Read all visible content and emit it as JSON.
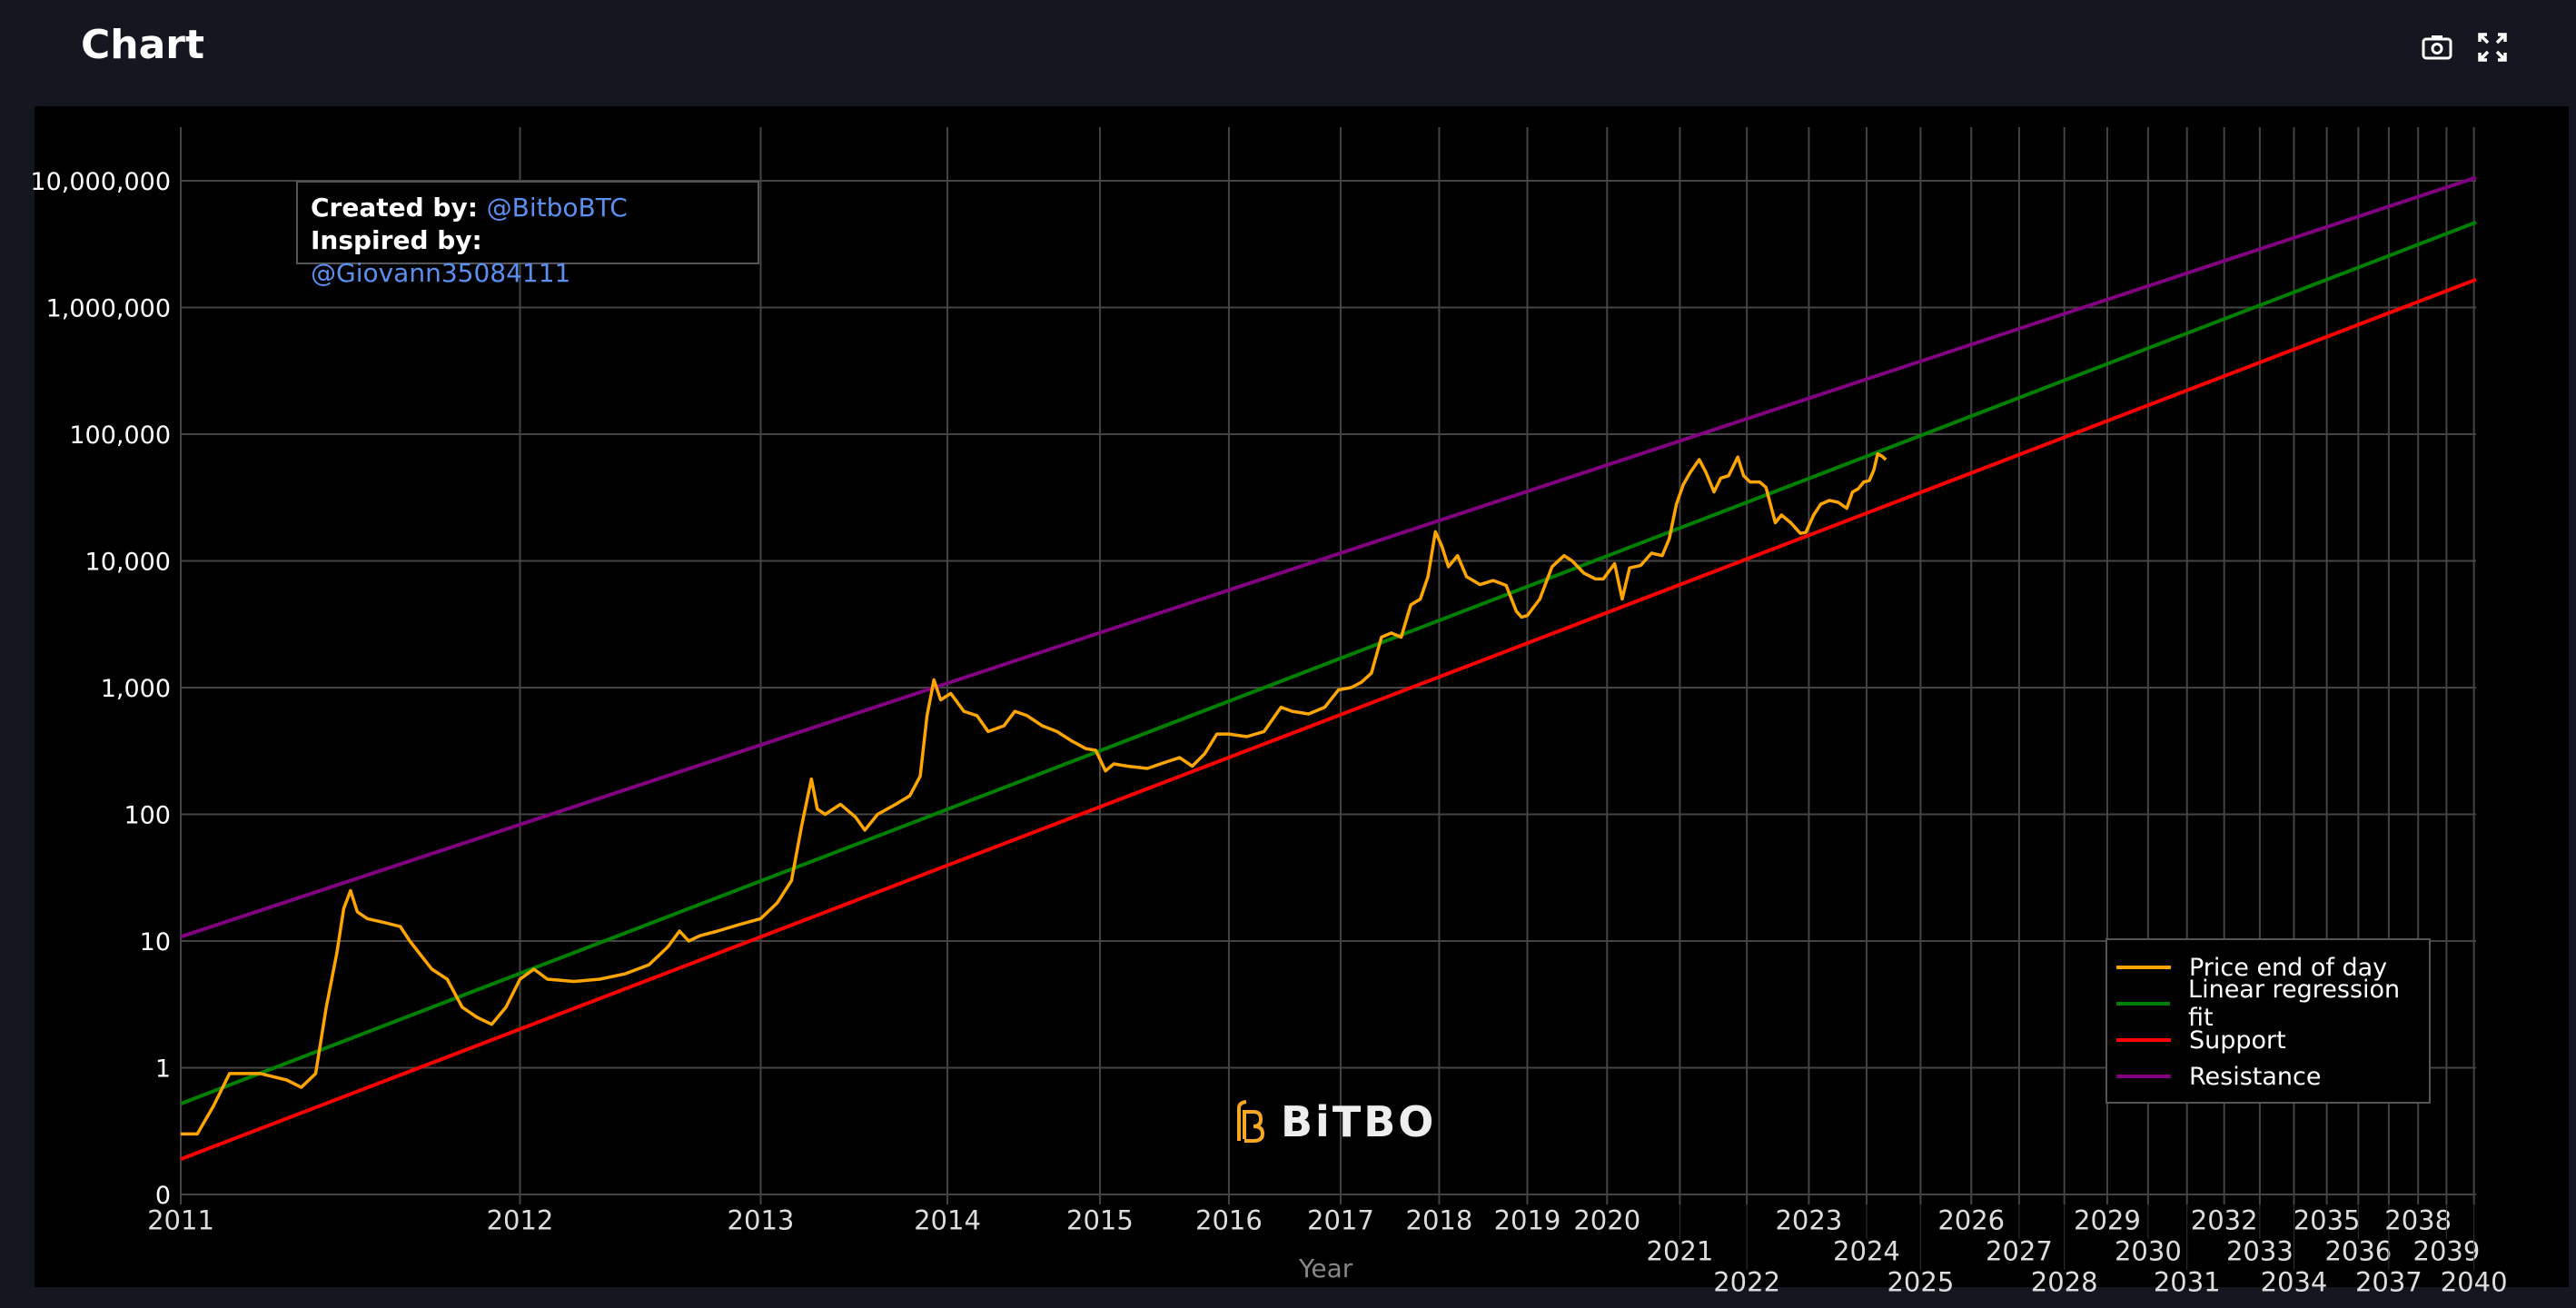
{
  "header": {
    "title": "Chart",
    "icons": [
      "camera-icon",
      "expand-icon"
    ]
  },
  "annotation": {
    "created_label": "Created by:",
    "created_value": "@BitboBTC",
    "inspired_label": "Inspired by:",
    "inspired_value": "@Giovann35084111"
  },
  "logo": {
    "text": "BiTBO"
  },
  "colors": {
    "price": "#FFA500",
    "regression": "#008000",
    "support": "#FF0000",
    "resistance": "#800080",
    "grid": "#444444",
    "link": "#5b8ff0"
  },
  "chart_data": {
    "type": "line",
    "title": "Chart",
    "xlabel": "Year",
    "ylabel": "",
    "x_scale": "log (years since 2009)",
    "y_scale": "log",
    "xlim": [
      2011,
      2040.08
    ],
    "ylim": [
      0.1,
      10000000
    ],
    "grid": true,
    "legend_position": "bottom-right",
    "x_ticks": [
      "2011",
      "2012",
      "2013",
      "2014",
      "2015",
      "2016",
      "2017",
      "2018",
      "2019",
      "2020",
      "2021",
      "2022",
      "2023",
      "2024",
      "2025",
      "2026",
      "2027",
      "2028",
      "2029",
      "2030",
      "2031",
      "2032",
      "2033",
      "2034",
      "2035",
      "2036",
      "2037",
      "2038",
      "2039",
      "2040"
    ],
    "y_ticks": [
      {
        "value": 10000000,
        "label": "10,000,000"
      },
      {
        "value": 1000000,
        "label": "1,000,000"
      },
      {
        "value": 100000,
        "label": "100,000"
      },
      {
        "value": 10000,
        "label": "10,000"
      },
      {
        "value": 1000,
        "label": "1,000"
      },
      {
        "value": 100,
        "label": "100"
      },
      {
        "value": 10,
        "label": "10"
      },
      {
        "value": 1,
        "label": "1"
      },
      {
        "value": 0.1,
        "label": "0"
      }
    ],
    "series": [
      {
        "name": "Price end of day",
        "color": "#FFA500",
        "x": [
          2011.0,
          2011.04,
          2011.08,
          2011.12,
          2011.2,
          2011.27,
          2011.31,
          2011.35,
          2011.38,
          2011.41,
          2011.43,
          2011.45,
          2011.47,
          2011.5,
          2011.55,
          2011.6,
          2011.63,
          2011.66,
          2011.7,
          2011.75,
          2011.8,
          2011.85,
          2011.9,
          2011.95,
          2012.0,
          2012.05,
          2012.1,
          2012.2,
          2012.3,
          2012.4,
          2012.5,
          2012.58,
          2012.63,
          2012.67,
          2012.72,
          2012.8,
          2012.9,
          2013.0,
          2013.08,
          2013.15,
          2013.2,
          2013.25,
          2013.28,
          2013.32,
          2013.4,
          2013.48,
          2013.53,
          2013.6,
          2013.7,
          2013.78,
          2013.84,
          2013.88,
          2013.92,
          2013.96,
          2014.02,
          2014.1,
          2014.18,
          2014.25,
          2014.35,
          2014.42,
          2014.5,
          2014.6,
          2014.7,
          2014.8,
          2014.9,
          2014.97,
          2015.04,
          2015.1,
          2015.2,
          2015.35,
          2015.5,
          2015.6,
          2015.7,
          2015.8,
          2015.9,
          2016.0,
          2016.15,
          2016.3,
          2016.45,
          2016.55,
          2016.7,
          2016.85,
          2016.98,
          2017.1,
          2017.2,
          2017.3,
          2017.4,
          2017.5,
          2017.6,
          2017.7,
          2017.8,
          2017.88,
          2017.96,
          2018.03,
          2018.1,
          2018.2,
          2018.3,
          2018.45,
          2018.6,
          2018.75,
          2018.87,
          2018.93,
          2019.0,
          2019.15,
          2019.3,
          2019.45,
          2019.55,
          2019.7,
          2019.85,
          2019.95,
          2020.1,
          2020.2,
          2020.3,
          2020.45,
          2020.6,
          2020.75,
          2020.85,
          2020.95,
          2021.05,
          2021.15,
          2021.28,
          2021.38,
          2021.5,
          2021.6,
          2021.72,
          2021.86,
          2021.95,
          2022.05,
          2022.2,
          2022.3,
          2022.45,
          2022.55,
          2022.7,
          2022.86,
          2022.95,
          2023.08,
          2023.2,
          2023.35,
          2023.5,
          2023.65,
          2023.75,
          2023.85,
          2023.95,
          2024.05,
          2024.13,
          2024.2,
          2024.28,
          2024.35
        ],
        "y": [
          0.3,
          0.3,
          0.5,
          0.9,
          0.9,
          0.8,
          0.7,
          0.9,
          3,
          8,
          18,
          25,
          17,
          15,
          14,
          13,
          10,
          8,
          6,
          5,
          3,
          2.5,
          2.2,
          3,
          5,
          6,
          5,
          4.8,
          5,
          5.5,
          6.5,
          9,
          12,
          10,
          11,
          12,
          13.5,
          15,
          20,
          30,
          80,
          190,
          110,
          100,
          120,
          95,
          75,
          100,
          120,
          140,
          200,
          600,
          1150,
          800,
          900,
          650,
          600,
          450,
          500,
          650,
          600,
          500,
          450,
          380,
          330,
          320,
          220,
          250,
          240,
          230,
          260,
          280,
          240,
          300,
          430,
          430,
          410,
          450,
          700,
          650,
          620,
          700,
          960,
          1000,
          1100,
          1300,
          2500,
          2700,
          2500,
          4500,
          5000,
          7500,
          17000,
          13000,
          9000,
          11000,
          7500,
          6500,
          7000,
          6400,
          4000,
          3600,
          3700,
          5000,
          9000,
          11000,
          10000,
          8000,
          7200,
          7200,
          9500,
          5000,
          8800,
          9200,
          11500,
          11000,
          15000,
          28000,
          40000,
          50000,
          63000,
          50000,
          35000,
          45000,
          47000,
          66000,
          47000,
          42000,
          42000,
          38000,
          20000,
          23000,
          20000,
          16500,
          16800,
          23000,
          28000,
          30000,
          29000,
          26000,
          35000,
          37000,
          42000,
          43000,
          52000,
          70000,
          67000,
          63000
        ]
      },
      {
        "name": "Linear regression fit",
        "color": "#008000",
        "x": [
          2011,
          2040.08
        ],
        "y": [
          0.52,
          4700000
        ]
      },
      {
        "name": "Support",
        "color": "#FF0000",
        "x": [
          2011,
          2040.08
        ],
        "y": [
          0.19,
          1660000
        ]
      },
      {
        "name": "Resistance",
        "color": "#800080",
        "x": [
          2011,
          2040.08
        ],
        "y": [
          10.8,
          10600000
        ]
      }
    ]
  }
}
